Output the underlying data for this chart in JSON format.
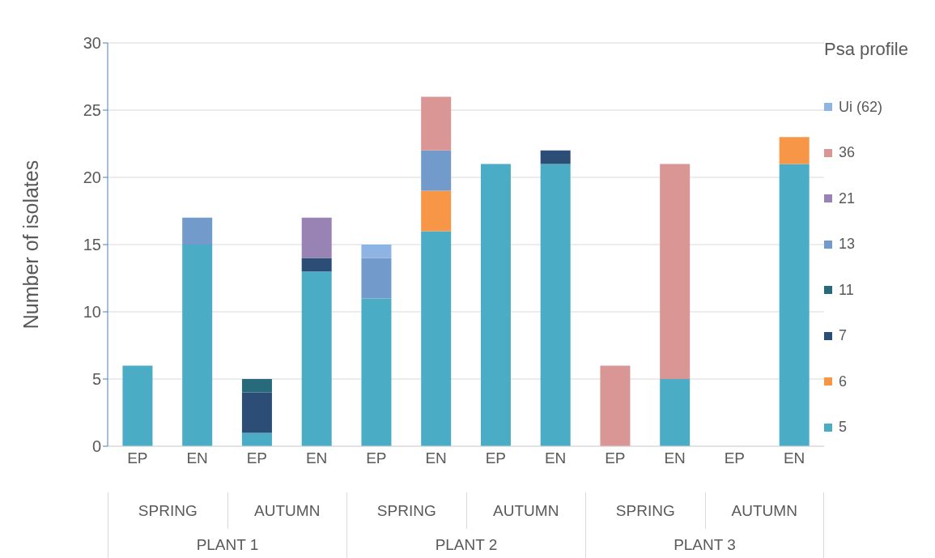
{
  "chart_data": {
    "type": "bar",
    "stacked": true,
    "ylabel": "Number of isolates",
    "legend_title": "Psa profile",
    "legend": "right",
    "grid": "y",
    "categories": [
      "EP",
      "EN",
      "EP",
      "EN",
      "EP",
      "EN",
      "EP",
      "EN",
      "EP",
      "EN",
      "EP",
      "EN"
    ],
    "annotations": [
      "SPRING",
      "AUTUMN",
      "SPRING",
      "AUTUMN",
      "SPRING",
      "AUTUMN",
      "PLANT 1",
      "PLANT 2",
      "PLANT 3"
    ],
    "ylim": [
      0,
      30
    ],
    "yticks": [
      0,
      5,
      10,
      15,
      20,
      25,
      30
    ],
    "series": [
      {
        "name": "5",
        "color": "#4bacc6",
        "values": [
          6,
          15,
          1,
          13,
          11,
          16,
          21,
          21,
          null,
          5,
          null,
          21
        ]
      },
      {
        "name": "6",
        "color": "#f79646",
        "values": [
          null,
          null,
          null,
          null,
          null,
          3,
          null,
          null,
          null,
          null,
          null,
          2
        ]
      },
      {
        "name": "7",
        "color": "#2c4d75",
        "values": [
          null,
          null,
          3,
          1,
          null,
          null,
          null,
          1,
          null,
          null,
          null,
          null
        ]
      },
      {
        "name": "11",
        "color": "#276a7c",
        "values": [
          null,
          null,
          1,
          null,
          null,
          null,
          null,
          null,
          null,
          null,
          null,
          null
        ]
      },
      {
        "name": "13",
        "color": "#729aca",
        "values": [
          null,
          2,
          null,
          null,
          3,
          3,
          null,
          null,
          null,
          null,
          null,
          null
        ]
      },
      {
        "name": "21",
        "color": "#9983b5",
        "values": [
          null,
          null,
          null,
          3,
          null,
          null,
          null,
          null,
          null,
          null,
          null,
          null
        ]
      },
      {
        "name": "36",
        "color": "#d99694",
        "values": [
          null,
          null,
          null,
          null,
          null,
          4,
          null,
          null,
          6,
          16,
          null,
          null
        ]
      },
      {
        "name": "Ui (62)",
        "color": "#8eb4e3",
        "values": [
          null,
          null,
          null,
          null,
          1,
          null,
          null,
          null,
          null,
          null,
          null,
          null
        ]
      }
    ]
  }
}
